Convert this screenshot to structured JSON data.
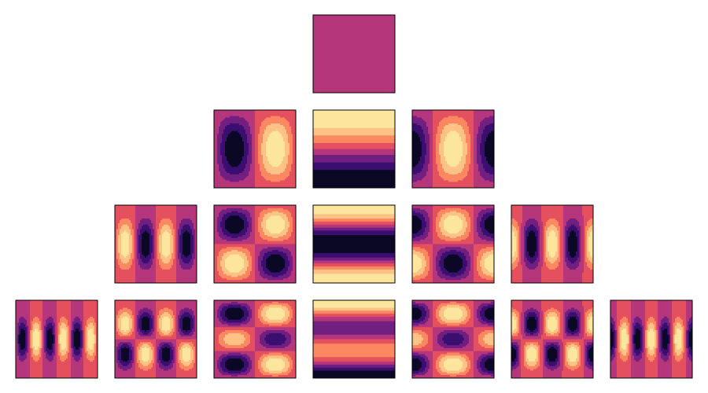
{
  "figure": {
    "description_kind": "spherical harmonics contour grid",
    "colormap": "magma",
    "levels": 7,
    "color_levels": [
      "#0b0826",
      "#3b0f70",
      "#711f81",
      "#b5367a",
      "#e5505f",
      "#fb8861",
      "#fec287",
      "#fce69e"
    ],
    "rows": [
      {
        "l": 0,
        "panels": [
          {
            "m": 0
          }
        ]
      },
      {
        "l": 1,
        "panels": [
          {
            "m": -1
          },
          {
            "m": 0
          },
          {
            "m": 1
          }
        ]
      },
      {
        "l": 2,
        "panels": [
          {
            "m": -2
          },
          {
            "m": -1
          },
          {
            "m": 0
          },
          {
            "m": 1
          },
          {
            "m": 2
          }
        ]
      },
      {
        "l": 3,
        "panels": [
          {
            "m": -3
          },
          {
            "m": -2
          },
          {
            "m": -1
          },
          {
            "m": 0
          },
          {
            "m": 1
          },
          {
            "m": 2
          },
          {
            "m": 3
          }
        ]
      }
    ]
  }
}
